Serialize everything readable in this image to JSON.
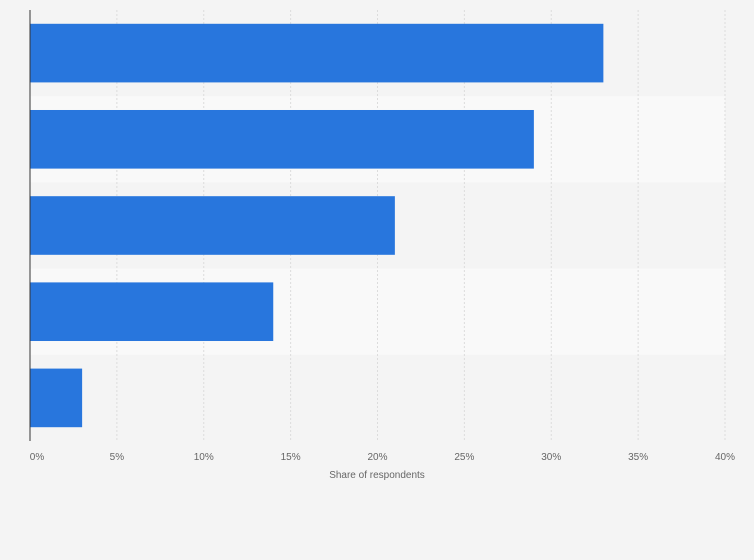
{
  "chart_data": {
    "type": "bar",
    "orientation": "horizontal",
    "categories": [
      "",
      "",
      "",
      "",
      ""
    ],
    "values": [
      33,
      29,
      21,
      14,
      3
    ],
    "unit": "%",
    "xlabel": "Share of respondents",
    "ylabel": "",
    "xlim": [
      0,
      40
    ],
    "xticks": [
      "0%",
      "5%",
      "10%",
      "15%",
      "20%",
      "25%",
      "30%",
      "35%",
      "40%"
    ],
    "grid": true,
    "legend": "none",
    "colors": {
      "bar": "#2876dd",
      "background": "#f4f4f4",
      "band_light": "#f9f9f9",
      "grid": "#dcdcdc",
      "axis": "#333333",
      "text": "#666666"
    }
  }
}
